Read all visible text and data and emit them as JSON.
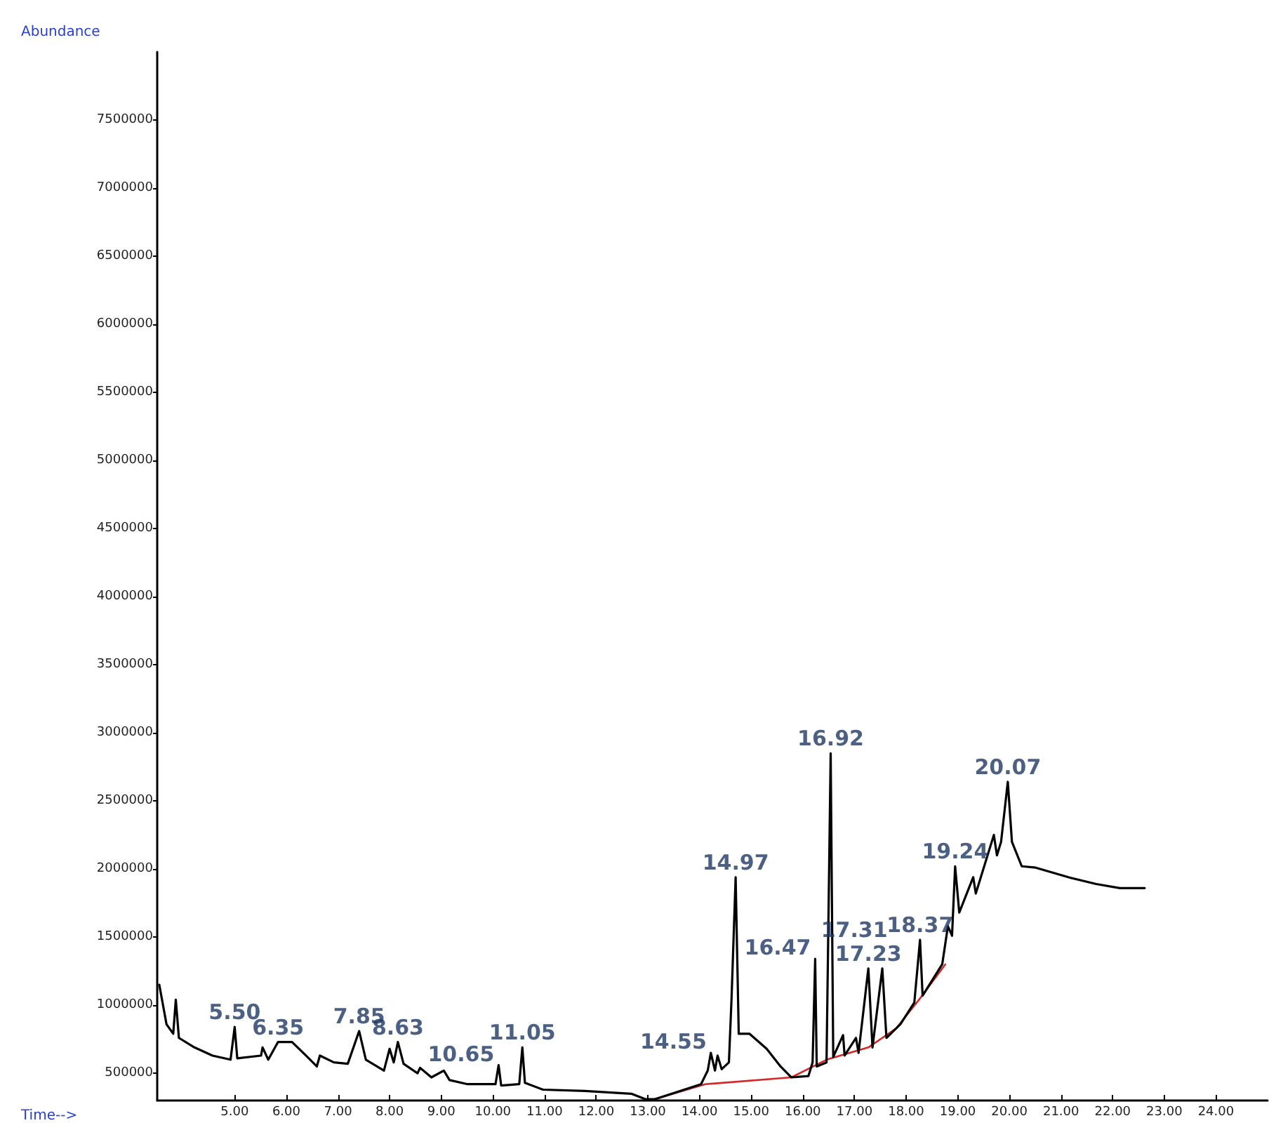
{
  "chart_data": {
    "type": "line",
    "xlabel": "Time-->",
    "ylabel": "Abundance",
    "xlim": [
      3.5,
      25
    ],
    "ylim": [
      300000,
      8000000
    ],
    "xticks": [
      {
        "value": 5,
        "label": "5.00"
      },
      {
        "value": 6,
        "label": "6.00"
      },
      {
        "value": 7,
        "label": "7.00"
      },
      {
        "value": 8,
        "label": "8.00"
      },
      {
        "value": 9,
        "label": "9.00"
      },
      {
        "value": 10,
        "label": "10.00"
      },
      {
        "value": 11,
        "label": "11.00"
      },
      {
        "value": 12,
        "label": "12.00"
      },
      {
        "value": 13,
        "label": "13.00"
      },
      {
        "value": 14,
        "label": "14.00"
      },
      {
        "value": 15,
        "label": "15.00"
      },
      {
        "value": 16,
        "label": "16.00"
      },
      {
        "value": 17,
        "label": "17.00"
      },
      {
        "value": 18,
        "label": "18.00"
      },
      {
        "value": 19,
        "label": "19.00"
      },
      {
        "value": 20,
        "label": "20.00"
      },
      {
        "value": 21,
        "label": "21.00"
      },
      {
        "value": 22,
        "label": "22.00"
      },
      {
        "value": 23,
        "label": "23.00"
      },
      {
        "value": 24,
        "label": "24.00"
      }
    ],
    "yticks": [
      500000,
      1000000,
      1500000,
      2000000,
      2500000,
      3000000,
      3500000,
      4000000,
      4500000,
      5000000,
      5500000,
      6000000,
      6500000,
      7000000,
      7500000
    ],
    "grid": false,
    "marker": "none",
    "line_style": "solid",
    "series": [
      {
        "color": "#000000",
        "x": [
          3.54,
          3.68,
          3.81,
          3.86,
          3.92,
          4.22,
          4.57,
          4.92,
          5.0,
          5.05,
          5.51,
          5.54,
          5.65,
          5.84,
          6.11,
          6.38,
          6.59,
          6.65,
          6.92,
          7.19,
          7.41,
          7.54,
          7.89,
          8.0,
          8.08,
          8.16,
          8.27,
          8.54,
          8.59,
          8.81,
          9.05,
          9.16,
          9.51,
          9.78,
          10.05,
          10.11,
          10.16,
          10.51,
          10.57,
          10.62,
          10.97,
          11.78,
          12.68,
          12.95,
          13.14,
          14.03,
          14.16,
          14.22,
          14.3,
          14.35,
          14.43,
          14.57,
          14.62,
          14.7,
          14.76,
          14.97,
          15.3,
          15.57,
          15.78,
          16.11,
          16.19,
          16.24,
          16.27,
          16.46,
          16.54,
          16.59,
          16.78,
          16.81,
          17.03,
          17.08,
          17.27,
          17.35,
          17.54,
          17.62,
          17.89,
          18.16,
          18.27,
          18.32,
          18.7,
          18.81,
          18.89,
          18.95,
          19.03,
          19.3,
          19.35,
          19.7,
          19.76,
          19.84,
          19.97,
          20.05,
          20.24,
          20.51,
          21.14,
          21.68,
          22.14,
          22.62
        ],
        "values": [
          1150000,
          860000,
          790000,
          1040000,
          760000,
          690000,
          630000,
          600000,
          840000,
          610000,
          630000,
          690000,
          600000,
          730000,
          730000,
          630000,
          550000,
          630000,
          580000,
          570000,
          810000,
          600000,
          520000,
          680000,
          580000,
          730000,
          570000,
          500000,
          540000,
          470000,
          520000,
          450000,
          420000,
          420000,
          420000,
          560000,
          410000,
          420000,
          690000,
          430000,
          380000,
          370000,
          350000,
          310000,
          310000,
          420000,
          520000,
          650000,
          520000,
          630000,
          530000,
          580000,
          1040000,
          1940000,
          790000,
          790000,
          680000,
          550000,
          470000,
          480000,
          580000,
          1340000,
          550000,
          580000,
          2850000,
          620000,
          780000,
          630000,
          760000,
          650000,
          1270000,
          690000,
          1270000,
          760000,
          860000,
          1020000,
          1480000,
          1070000,
          1300000,
          1580000,
          1510000,
          2020000,
          1680000,
          1940000,
          1820000,
          2250000,
          2100000,
          2200000,
          2640000,
          2200000,
          2020000,
          2010000,
          1940000,
          1890000,
          1860000,
          1860000
        ]
      },
      {
        "color": "#d62728",
        "x": [
          13.14,
          14.11,
          15.78,
          16.46,
          17.27,
          17.81,
          18.27,
          18.76
        ],
        "values": [
          310000,
          420000,
          470000,
          600000,
          690000,
          830000,
          1050000,
          1300000
        ]
      }
    ],
    "annotations": [
      {
        "text": "5.50",
        "x": 5.0,
        "y": 840000
      },
      {
        "text": "6.35",
        "x": 5.84,
        "y": 730000
      },
      {
        "text": "7.85",
        "x": 7.41,
        "y": 810000
      },
      {
        "text": "8.63",
        "x": 8.16,
        "y": 730000
      },
      {
        "text": "10.65",
        "x": 10.11,
        "y": 560000
      },
      {
        "text": "11.05",
        "x": 10.57,
        "y": 690000
      },
      {
        "text": "14.55",
        "x": 14.22,
        "y": 650000
      },
      {
        "text": "14.97",
        "x": 14.7,
        "y": 1940000
      },
      {
        "text": "16.47",
        "x": 16.24,
        "y": 1340000
      },
      {
        "text": "16.92",
        "x": 16.54,
        "y": 2850000
      },
      {
        "text": "17.23",
        "x": 17.27,
        "y": 1270000
      },
      {
        "text": "17.31",
        "x": 17.54,
        "y": 1270000
      },
      {
        "text": "18.37",
        "x": 18.27,
        "y": 1480000
      },
      {
        "text": "19.24",
        "x": 18.95,
        "y": 2020000
      },
      {
        "text": "20.07",
        "x": 19.97,
        "y": 2640000
      }
    ]
  }
}
